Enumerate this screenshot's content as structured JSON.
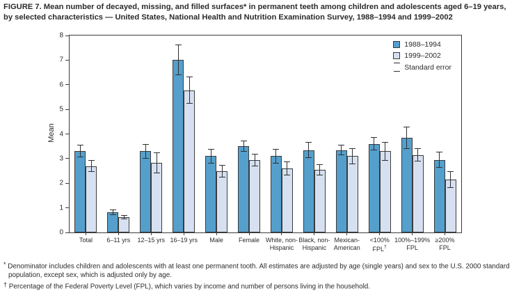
{
  "figure": {
    "title": "FIGURE 7. Mean number of decayed, missing, and filled surfaces* in permanent teeth among children and adolescents aged 6–19 years, by selected characteristics — United States, National Health and Nutrition Examination Survey, 1988–1994 and 1999–2002"
  },
  "chart_data": {
    "type": "bar",
    "ylabel": "Mean",
    "xlabel": "",
    "ylim": [
      0,
      8
    ],
    "yticks": [
      0,
      1,
      2,
      3,
      4,
      5,
      6,
      7,
      8
    ],
    "grid": false,
    "legend_position": "top-right-inside",
    "error_bar_label": "Standard error",
    "categories": [
      "Total",
      "6–11 yrs",
      "12–15 yrs",
      "16–19 yrs",
      "Male",
      "Female",
      "White, non-Hispanic",
      "Black, non-Hispanic",
      "Mexican-American",
      "<100% FPL†",
      "100%–199% FPL",
      "≥200% FPL"
    ],
    "category_label_lines": [
      [
        "Total"
      ],
      [
        "6–11 yrs"
      ],
      [
        "12–15 yrs"
      ],
      [
        "16–19 yrs"
      ],
      [
        "Male"
      ],
      [
        "Female"
      ],
      [
        "White, non-",
        "Hispanic"
      ],
      [
        "Black, non-",
        "Hispanic"
      ],
      [
        "Mexican-",
        "American"
      ],
      [
        "<100%",
        "FPL†"
      ],
      [
        "100%–199%",
        "FPL"
      ],
      [
        "≥200%",
        "FPL"
      ]
    ],
    "series": [
      {
        "name": "1988–1994",
        "color": "#549fcc",
        "values": [
          3.3,
          0.82,
          3.3,
          7.0,
          3.1,
          3.5,
          3.1,
          3.35,
          3.35,
          3.6,
          3.85,
          2.95
        ],
        "standard_errors": [
          0.25,
          0.1,
          0.3,
          0.62,
          0.3,
          0.22,
          0.3,
          0.33,
          0.2,
          0.27,
          0.45,
          0.32
        ]
      },
      {
        "name": "1999–2002",
        "color": "#d6e0f0",
        "values": [
          2.7,
          0.62,
          2.82,
          5.78,
          2.48,
          2.95,
          2.6,
          2.55,
          3.1,
          3.3,
          3.15,
          2.15
        ],
        "standard_errors": [
          0.24,
          0.08,
          0.43,
          0.55,
          0.25,
          0.25,
          0.27,
          0.22,
          0.33,
          0.38,
          0.27,
          0.33
        ]
      }
    ]
  },
  "footnotes": [
    {
      "marker": "*",
      "text": "Denominator includes children and adolescents with at least one permanent tooth. All estimates are adjusted by age (single years) and sex to the U.S. 2000 standard population, except sex, which is adjusted only by age."
    },
    {
      "marker": "†",
      "text": "Percentage of the Federal Poverty Level (FPL), which varies by income and number of persons living in the household."
    }
  ],
  "colors": {
    "series_1988_1994": "#549fcc",
    "series_1999_2002": "#d6e0f0",
    "outline": "#3b3b3b",
    "text": "#2b2b2b"
  }
}
